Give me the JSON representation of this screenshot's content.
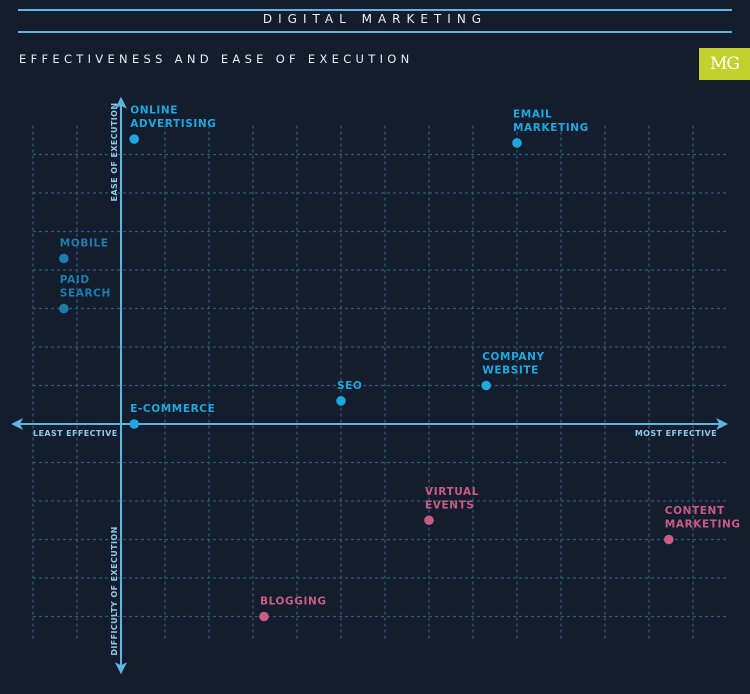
{
  "header": {
    "title": "DIGITAL MARKETING",
    "subtitle": "EFFECTIVENESS AND EASE OF EXECUTION",
    "logo_text": "MG"
  },
  "colors": {
    "background": "#141d2d",
    "axis": "#5fb4e0",
    "grid": "#2f5a74",
    "positive_point": "#1ea8e0",
    "positive_point_dim": "#1b7fad",
    "negative_point": "#c95b86",
    "logo": "#c3d12f"
  },
  "chart_data": {
    "type": "scatter",
    "title": "EFFECTIVENESS AND EASE OF EXECUTION",
    "x_axis": {
      "negative_label": "LEAST EFFECTIVE",
      "positive_label": "MOST EFFECTIVE",
      "range": [
        -2.0,
        13.8
      ],
      "arrow_min": -2.5
    },
    "y_axis": {
      "positive_label": "EASE OF EXECUTION",
      "negative_label": "DIFFICULTY OF EXECUTION",
      "range": [
        -5.6,
        7.75
      ],
      "arrow_max": 8.5,
      "arrow_min": -6.5
    },
    "grid": true,
    "grid_x_ticks": [
      -2,
      -1,
      1,
      2,
      3,
      4,
      5,
      6,
      7,
      8,
      9,
      10,
      11,
      12,
      13
    ],
    "grid_y_ticks": [
      -5,
      -4,
      -3,
      -2,
      -1,
      1,
      2,
      3,
      4,
      5,
      6,
      7
    ],
    "points": [
      {
        "label_lines": [
          "ONLINE",
          "ADVERTISING"
        ],
        "x": 0.3,
        "y": 7.4,
        "group": "ease"
      },
      {
        "label_lines": [
          "EMAIL",
          "MARKETING"
        ],
        "x": 9.0,
        "y": 7.3,
        "group": "ease"
      },
      {
        "label_lines": [
          "MOBILE"
        ],
        "x": -1.3,
        "y": 4.3,
        "group": "ease-dim"
      },
      {
        "label_lines": [
          "PAID",
          "SEARCH"
        ],
        "x": -1.3,
        "y": 3.0,
        "group": "ease-dim"
      },
      {
        "label_lines": [
          "COMPANY",
          "WEBSITE"
        ],
        "x": 8.3,
        "y": 1.0,
        "group": "ease"
      },
      {
        "label_lines": [
          "SEO"
        ],
        "x": 5.0,
        "y": 0.6,
        "group": "ease"
      },
      {
        "label_lines": [
          "E-COMMERCE"
        ],
        "x": 0.3,
        "y": 0.0,
        "group": "ease"
      },
      {
        "label_lines": [
          "VIRTUAL",
          "EVENTS"
        ],
        "x": 7.0,
        "y": -2.5,
        "group": "difficulty"
      },
      {
        "label_lines": [
          "CONTENT",
          "MARKETING"
        ],
        "x": 12.45,
        "y": -3.0,
        "group": "difficulty"
      },
      {
        "label_lines": [
          "BLOGGING"
        ],
        "x": 3.25,
        "y": -5.0,
        "group": "difficulty"
      }
    ]
  }
}
